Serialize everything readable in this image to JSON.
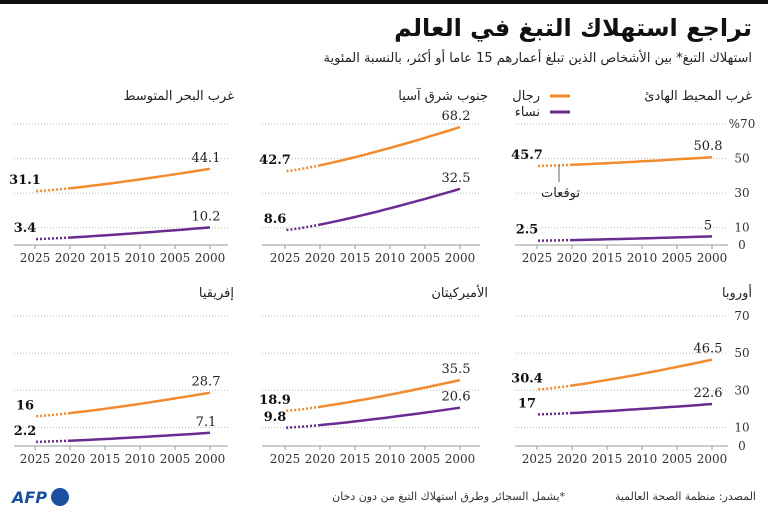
{
  "title": "تراجع استهلاك التبغ في العالم",
  "subtitle": "استهلاك التبغ* بين الأشخاص الذين تبلغ أعمارهم 15 عاما أو أكثر، بالنسبة المئوية",
  "legend": {
    "men": "رجال",
    "women": "نساء"
  },
  "projection_label": "توقعات",
  "colors": {
    "men": "#f28a2e",
    "women": "#6a2c91"
  },
  "footer": {
    "source": "المصدر: منظمة الصحة العالمية",
    "note": "*يشمل السجائر وطرق استهلاك التبغ من دون دخان",
    "logo": "AFP"
  },
  "chart_data": {
    "type": "line",
    "ylim": [
      0,
      70
    ],
    "yticks": [
      "%70",
      "50",
      "30",
      "10",
      "0"
    ],
    "yticks_bottom": [
      "70",
      "50",
      "30",
      "10",
      "0"
    ],
    "x_ticks": [
      "2025",
      "2020",
      "2015",
      "2010",
      "2005",
      "2000"
    ],
    "x_reversed": true,
    "projection_from": 2020,
    "panels": [
      {
        "title": "غرب المحيط الهادئ",
        "series": [
          {
            "name": "رجال",
            "x": [
              2000,
              2025
            ],
            "values": [
              50.8,
              45.7
            ]
          },
          {
            "name": "نساء",
            "x": [
              2000,
              2025
            ],
            "values": [
              5,
              2.5
            ]
          }
        ]
      },
      {
        "title": "جنوب شرق آسيا",
        "series": [
          {
            "name": "رجال",
            "x": [
              2000,
              2025
            ],
            "values": [
              68.2,
              42.7
            ]
          },
          {
            "name": "نساء",
            "x": [
              2000,
              2025
            ],
            "values": [
              32.5,
              8.6
            ]
          }
        ]
      },
      {
        "title": "غرب البحر المتوسط",
        "series": [
          {
            "name": "رجال",
            "x": [
              2000,
              2025
            ],
            "values": [
              44.1,
              31.1
            ]
          },
          {
            "name": "نساء",
            "x": [
              2000,
              2025
            ],
            "values": [
              10.2,
              3.4
            ]
          }
        ]
      },
      {
        "title": "أوروبا",
        "series": [
          {
            "name": "رجال",
            "x": [
              2000,
              2025
            ],
            "values": [
              46.5,
              30.4
            ]
          },
          {
            "name": "نساء",
            "x": [
              2000,
              2025
            ],
            "values": [
              22.6,
              17
            ]
          }
        ]
      },
      {
        "title": "الأميركيتان",
        "series": [
          {
            "name": "رجال",
            "x": [
              2000,
              2025
            ],
            "values": [
              35.5,
              18.9
            ]
          },
          {
            "name": "نساء",
            "x": [
              2000,
              2025
            ],
            "values": [
              20.6,
              9.8
            ]
          }
        ]
      },
      {
        "title": "إفريقيا",
        "series": [
          {
            "name": "رجال",
            "x": [
              2000,
              2025
            ],
            "values": [
              28.7,
              16
            ]
          },
          {
            "name": "نساء",
            "x": [
              2000,
              2025
            ],
            "values": [
              7.1,
              2.2
            ]
          }
        ]
      }
    ]
  }
}
